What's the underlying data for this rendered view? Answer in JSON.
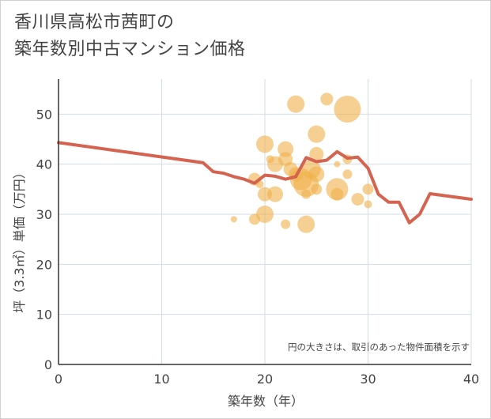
{
  "title": {
    "line1": "香川県高松市茜町の",
    "line2": "築年数別中古マンション価格"
  },
  "chart_data": {
    "type": "scatter",
    "xlabel": "築年数（年）",
    "ylabel": "坪（3.3㎡）単価（万円）",
    "xlim": [
      0,
      40
    ],
    "ylim": [
      0,
      57
    ],
    "xticks": [
      0,
      10,
      20,
      30,
      40
    ],
    "yticks": [
      0,
      10,
      20,
      30,
      40,
      50
    ],
    "grid": true,
    "annotation": "円の大きさは、取引のあった物件面積を示す",
    "colors": {
      "bubble": "#f0b04a",
      "line": "#d4634f",
      "grid": "#d3dde6",
      "axis": "#333333",
      "text": "#444444"
    },
    "bubbles": [
      {
        "x": 17,
        "y": 29,
        "s": 4
      },
      {
        "x": 19,
        "y": 29,
        "s": 7
      },
      {
        "x": 19,
        "y": 37,
        "s": 8
      },
      {
        "x": 19.5,
        "y": 36,
        "s": 5
      },
      {
        "x": 20,
        "y": 44,
        "s": 11
      },
      {
        "x": 20,
        "y": 34,
        "s": 9
      },
      {
        "x": 20,
        "y": 30,
        "s": 11
      },
      {
        "x": 20.5,
        "y": 41,
        "s": 5
      },
      {
        "x": 21,
        "y": 40,
        "s": 10
      },
      {
        "x": 21,
        "y": 34,
        "s": 10
      },
      {
        "x": 22,
        "y": 43,
        "s": 10
      },
      {
        "x": 22,
        "y": 41,
        "s": 9
      },
      {
        "x": 22,
        "y": 28,
        "s": 6
      },
      {
        "x": 22.5,
        "y": 39,
        "s": 9
      },
      {
        "x": 23,
        "y": 52,
        "s": 11
      },
      {
        "x": 23,
        "y": 38,
        "s": 9
      },
      {
        "x": 23.5,
        "y": 37,
        "s": 14
      },
      {
        "x": 24,
        "y": 36,
        "s": 16
      },
      {
        "x": 24,
        "y": 34,
        "s": 6
      },
      {
        "x": 24,
        "y": 28,
        "s": 11
      },
      {
        "x": 24.5,
        "y": 39,
        "s": 12
      },
      {
        "x": 25,
        "y": 46,
        "s": 11
      },
      {
        "x": 25,
        "y": 42,
        "s": 9
      },
      {
        "x": 25,
        "y": 38,
        "s": 10
      },
      {
        "x": 25,
        "y": 35,
        "s": 7
      },
      {
        "x": 26,
        "y": 53,
        "s": 8
      },
      {
        "x": 27,
        "y": 40,
        "s": 4
      },
      {
        "x": 27,
        "y": 35,
        "s": 14
      },
      {
        "x": 27,
        "y": 34,
        "s": 8
      },
      {
        "x": 28,
        "y": 51,
        "s": 17
      },
      {
        "x": 28,
        "y": 41,
        "s": 6
      },
      {
        "x": 28,
        "y": 38,
        "s": 6
      },
      {
        "x": 29,
        "y": 33,
        "s": 8
      },
      {
        "x": 30,
        "y": 35,
        "s": 7
      },
      {
        "x": 30,
        "y": 32,
        "s": 5
      }
    ],
    "line": {
      "x": [
        0,
        14,
        15,
        16,
        17,
        18,
        19,
        20,
        21,
        22,
        23,
        24,
        25,
        26,
        27,
        28,
        29,
        30,
        31,
        32,
        33,
        34,
        35,
        36,
        40
      ],
      "y": [
        44.3,
        40.3,
        38.5,
        38.2,
        37.5,
        37,
        36.2,
        37.8,
        37.6,
        37,
        37.5,
        41.3,
        40.5,
        40.8,
        42.5,
        41.2,
        41.4,
        39.2,
        34,
        32.4,
        32.4,
        28.3,
        30,
        34.1,
        33
      ]
    }
  }
}
